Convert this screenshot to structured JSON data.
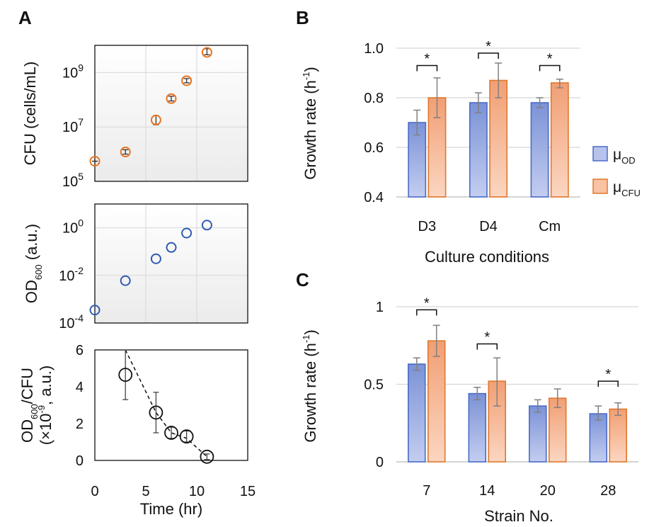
{
  "panel_labels": [
    "A",
    "B",
    "C"
  ],
  "colors": {
    "orange": "#E8731F",
    "blue": "#2E5BB4",
    "black": "#111111",
    "bar_blue": "#8EA2DC",
    "bar_blue_edge": "#4A6CC8",
    "bar_orange": "#F5B08A",
    "bar_orange_edge": "#E0782E",
    "grid": "#d7d7d7",
    "err": "#808080"
  },
  "chart_data": [
    {
      "id": "A_top",
      "type": "scatter",
      "ylabel": "CFU (cells/mL)",
      "ylog": true,
      "ylim": [
        100000,
        10000000000
      ],
      "xlim": [
        0,
        15
      ],
      "yticks": [
        {
          "value": 100000,
          "base": "10",
          "exp": "5"
        },
        {
          "value": 10000000,
          "base": "10",
          "exp": "7"
        },
        {
          "value": 1000000000,
          "base": "10",
          "exp": "9"
        }
      ],
      "grid": true,
      "marker_color": "#E8731F",
      "x": [
        0,
        3,
        6,
        7.5,
        9,
        11
      ],
      "y": [
        550000,
        1200000,
        18000000,
        110000000,
        500000000,
        5500000000
      ],
      "err_lo": [
        550000,
        1000000,
        12000000,
        90000000,
        420000000,
        4500000000
      ],
      "err_hi": [
        550000,
        1450000,
        26000000,
        135000000,
        600000000,
        7500000000
      ]
    },
    {
      "id": "A_mid",
      "type": "scatter",
      "ylabel_base": "OD",
      "ylabel_sub": "600",
      "ylabel_rest": " (a.u.)",
      "ylog": true,
      "ylim": [
        0.0001,
        10
      ],
      "xlim": [
        0,
        15
      ],
      "yticks": [
        {
          "value": 0.0001,
          "base": "10",
          "exp": "-4"
        },
        {
          "value": 0.01,
          "base": "10",
          "exp": "-2"
        },
        {
          "value": 1,
          "base": "10",
          "exp": "0"
        }
      ],
      "grid": true,
      "marker_color": "#2E5BB4",
      "x": [
        0,
        3,
        6,
        7.5,
        9,
        11
      ],
      "y": [
        0.00035,
        0.006,
        0.05,
        0.15,
        0.6,
        1.3
      ]
    },
    {
      "id": "A_bot",
      "type": "scatter",
      "ylabel_line1_base": "OD",
      "ylabel_line1_sub": "600",
      "ylabel_line1_rest": "/CFU",
      "ylabel_line2_pre": "(×10",
      "ylabel_line2_sup": "-9",
      "ylabel_line2_post": ", a.u.)",
      "xlabel": "Time (hr)",
      "ylim": [
        0,
        6
      ],
      "xlim": [
        0,
        15
      ],
      "yticks": [
        0,
        2,
        4,
        6
      ],
      "xticks": [
        0,
        5,
        10,
        15
      ],
      "grid": false,
      "marker_color": "#111111",
      "x": [
        3,
        6,
        7.5,
        9,
        11
      ],
      "y": [
        4.65,
        2.6,
        1.5,
        1.3,
        0.2
      ],
      "err_lo": [
        3.3,
        1.5,
        1.2,
        1.0,
        0.05
      ],
      "err_hi": [
        6.0,
        3.7,
        1.8,
        1.6,
        0.35
      ],
      "trend_x": [
        3,
        6,
        7.5,
        9,
        11
      ],
      "trend_y": [
        6.0,
        2.6,
        1.5,
        1.2,
        0.2
      ]
    },
    {
      "id": "B",
      "type": "bar",
      "ylabel": "Growth rate (h",
      "ylabel_sup": "-1",
      "ylabel_end": ")",
      "xlabel": "Culture conditions",
      "categories": [
        "D3",
        "D4",
        "Cm"
      ],
      "ylim": [
        0.4,
        1.0
      ],
      "yticks": [
        "0.4",
        "0.6",
        "0.8",
        "1.0"
      ],
      "grid": true,
      "series": [
        {
          "values": [
            0.7,
            0.78,
            0.78
          ],
          "err_lo": [
            0.65,
            0.74,
            0.76
          ],
          "err_hi": [
            0.75,
            0.82,
            0.8
          ]
        },
        {
          "values": [
            0.8,
            0.87,
            0.86
          ],
          "err_lo": [
            0.72,
            0.8,
            0.84
          ],
          "err_hi": [
            0.88,
            0.94,
            0.875
          ]
        }
      ],
      "significance": [
        {
          "category": 0,
          "label": "*",
          "y": 0.93
        },
        {
          "category": 1,
          "label": "*",
          "y": 0.98
        },
        {
          "category": 2,
          "label": "*",
          "y": 0.93
        }
      ]
    },
    {
      "id": "C",
      "type": "bar",
      "ylabel": "Growth rate (h",
      "ylabel_sup": "-1",
      "ylabel_end": ")",
      "xlabel": "Strain No.",
      "categories": [
        "7",
        "14",
        "20",
        "28"
      ],
      "ylim": [
        0,
        1
      ],
      "yticks": [
        "0",
        "0.5",
        "1"
      ],
      "grid": true,
      "series": [
        {
          "values": [
            0.63,
            0.44,
            0.36,
            0.31
          ],
          "err_lo": [
            0.59,
            0.4,
            0.32,
            0.27
          ],
          "err_hi": [
            0.67,
            0.48,
            0.4,
            0.36
          ]
        },
        {
          "values": [
            0.78,
            0.52,
            0.41,
            0.34
          ],
          "err_lo": [
            0.68,
            0.36,
            0.35,
            0.3
          ],
          "err_hi": [
            0.88,
            0.67,
            0.47,
            0.38
          ]
        }
      ],
      "significance": [
        {
          "category": 0,
          "label": "*",
          "y": 0.98
        },
        {
          "category": 1,
          "label": "*",
          "y": 0.76
        },
        {
          "category": 3,
          "label": "*",
          "y": 0.52
        }
      ]
    }
  ],
  "legend": [
    {
      "base": "μ",
      "sub": "OD",
      "color": "bar_blue"
    },
    {
      "base": "μ",
      "sub": "CFU",
      "color": "bar_orange"
    }
  ]
}
